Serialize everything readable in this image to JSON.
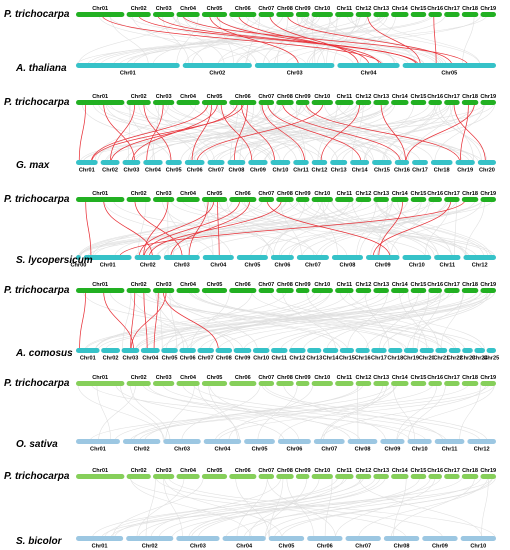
{
  "colors": {
    "top_track": "#22b022",
    "top_track_light": "#86cf5a",
    "bottom_track": "#36c2c8",
    "bottom_track_light": "#9cc7e2",
    "background_link": "#dedede",
    "highlight_link": "#e8333a"
  },
  "panels": [
    {
      "top": {
        "species": "P. trichocarpa",
        "chromosomes": [
          "Chr01",
          "Chr02",
          "Chr03",
          "Chr04",
          "Chr05",
          "Chr06",
          "Chr07",
          "Chr08",
          "Chr09",
          "Chr10",
          "Chr11",
          "Chr12",
          "Chr13",
          "Chr14",
          "Chr15",
          "Chr16",
          "Chr17",
          "Chr18",
          "Chr19"
        ]
      },
      "bottom": {
        "species": "A. thaliana",
        "chromosomes": [
          "Chr01",
          "Chr02",
          "Chr03",
          "Chr04",
          "Chr05"
        ]
      },
      "highlight_links": [
        [
          3,
          5
        ],
        [
          5,
          4
        ],
        [
          6,
          4
        ],
        [
          7,
          4
        ],
        [
          2,
          5
        ],
        [
          4,
          5
        ],
        [
          8,
          5
        ],
        [
          16,
          5
        ],
        [
          12,
          5
        ],
        [
          1,
          4
        ],
        [
          5,
          3
        ]
      ],
      "background_link_count": 60
    },
    {
      "top": {
        "species": "P. trichocarpa",
        "chromosomes": [
          "Chr01",
          "Chr02",
          "Chr03",
          "Chr04",
          "Chr05",
          "Chr06",
          "Chr07",
          "Chr08",
          "Chr09",
          "Chr10",
          "Chr11",
          "Chr12",
          "Chr13",
          "Chr14",
          "Chr15",
          "Chr16",
          "Chr17",
          "Chr18",
          "Chr19"
        ]
      },
      "bottom": {
        "species": "G. max",
        "chromosomes": [
          "Chr01",
          "Chr02",
          "Chr03",
          "Chr04",
          "Chr05",
          "Chr06",
          "Chr07",
          "Chr08",
          "Chr09",
          "Chr10",
          "Chr11",
          "Chr12",
          "Chr13",
          "Chr14",
          "Chr15",
          "Chr16",
          "Chr17",
          "Chr18",
          "Chr19",
          "Chr20"
        ]
      },
      "highlight_links": [
        [
          1,
          1
        ],
        [
          1,
          3
        ],
        [
          2,
          2
        ],
        [
          2,
          5
        ],
        [
          3,
          4
        ],
        [
          5,
          1
        ],
        [
          5,
          3
        ],
        [
          5,
          6
        ],
        [
          5,
          9
        ],
        [
          6,
          1
        ],
        [
          6,
          2
        ],
        [
          6,
          8
        ],
        [
          6,
          10
        ],
        [
          7,
          11
        ],
        [
          7,
          14
        ],
        [
          8,
          16
        ],
        [
          9,
          19
        ],
        [
          13,
          16
        ],
        [
          12,
          12
        ],
        [
          17,
          20
        ],
        [
          18,
          19
        ],
        [
          18,
          16
        ],
        [
          10,
          6
        ]
      ],
      "background_link_count": 80
    },
    {
      "top": {
        "species": "P. trichocarpa",
        "chromosomes": [
          "Chr01",
          "Chr02",
          "Chr03",
          "Chr04",
          "Chr05",
          "Chr06",
          "Chr07",
          "Chr08",
          "Chr09",
          "Chr10",
          "Chr11",
          "Chr12",
          "Chr13",
          "Chr14",
          "Chr15",
          "Chr16",
          "Chr17",
          "Chr18",
          "Chr19"
        ]
      },
      "bottom": {
        "species": "S. lycopersicum",
        "chromosomes": [
          "Chr00",
          "Chr01",
          "Chr02",
          "Chr03",
          "Chr04",
          "Chr05",
          "Chr06",
          "Chr07",
          "Chr08",
          "Chr09",
          "Chr10",
          "Chr11",
          "Chr12"
        ]
      },
      "highlight_links": [
        [
          1,
          1
        ],
        [
          1,
          2
        ],
        [
          2,
          3
        ],
        [
          3,
          2
        ],
        [
          5,
          2
        ],
        [
          5,
          3
        ],
        [
          5,
          4
        ],
        [
          6,
          2
        ],
        [
          6,
          3
        ],
        [
          7,
          9
        ],
        [
          8,
          2
        ],
        [
          14,
          9
        ],
        [
          17,
          9
        ],
        [
          18,
          1
        ]
      ],
      "background_link_count": 70
    },
    {
      "top": {
        "species": "P. trichocarpa",
        "chromosomes": [
          "Chr01",
          "Chr02",
          "Chr03",
          "Chr04",
          "Chr05",
          "Chr06",
          "Chr07",
          "Chr08",
          "Chr09",
          "Chr10",
          "Chr11",
          "Chr12",
          "Chr13",
          "Chr14",
          "Chr15",
          "Chr16",
          "Chr17",
          "Chr18",
          "Chr19"
        ]
      },
      "bottom": {
        "species": "A. comosus",
        "chromosomes": [
          "Chr01",
          "Chr02",
          "Chr03",
          "Chr04",
          "Chr05",
          "Chr06",
          "Chr07",
          "Chr08",
          "Chr09",
          "Chr10",
          "Chr11",
          "Chr12",
          "Chr13",
          "Chr14",
          "Chr15",
          "Chr16",
          "Chr17",
          "Chr18",
          "Chr19",
          "Chr20",
          "Chr21",
          "Chr22",
          "Chr23",
          "Chr24",
          "Chr25"
        ]
      },
      "highlight_links": [
        [
          1,
          1
        ],
        [
          1,
          3
        ],
        [
          2,
          3
        ],
        [
          2,
          4
        ],
        [
          3,
          8
        ],
        [
          3,
          4
        ],
        [
          3,
          3
        ]
      ],
      "background_link_count": 60
    },
    {
      "top": {
        "species": "P. trichocarpa",
        "chromosomes": [
          "Chr01",
          "Chr02",
          "Chr03",
          "Chr04",
          "Chr05",
          "Chr06",
          "Chr07",
          "Chr08",
          "Chr09",
          "Chr10",
          "Chr11",
          "Chr12",
          "Chr13",
          "Chr14",
          "Chr15",
          "Chr16",
          "Chr17",
          "Chr18",
          "Chr19"
        ]
      },
      "bottom": {
        "species": "O. sativa",
        "chromosomes": [
          "Chr01",
          "Chr02",
          "Chr03",
          "Chr04",
          "Chr05",
          "Chr06",
          "Chr07",
          "Chr08",
          "Chr09",
          "Chr10",
          "Chr11",
          "Chr12"
        ]
      },
      "highlight_links": [],
      "background_link_count": 40
    },
    {
      "top": {
        "species": "P. trichocarpa",
        "chromosomes": [
          "Chr01",
          "Chr02",
          "Chr03",
          "Chr04",
          "Chr05",
          "Chr06",
          "Chr07",
          "Chr08",
          "Chr09",
          "Chr10",
          "Chr11",
          "Chr12",
          "Chr13",
          "Chr14",
          "Chr15",
          "Chr16",
          "Chr17",
          "Chr18",
          "Chr19"
        ]
      },
      "bottom": {
        "species": "S. bicolor",
        "chromosomes": [
          "Chr01",
          "Chr02",
          "Chr03",
          "Chr04",
          "Chr05",
          "Chr06",
          "Chr07",
          "Chr08",
          "Chr09",
          "Chr10"
        ]
      },
      "highlight_links": [],
      "background_link_count": 40
    }
  ]
}
